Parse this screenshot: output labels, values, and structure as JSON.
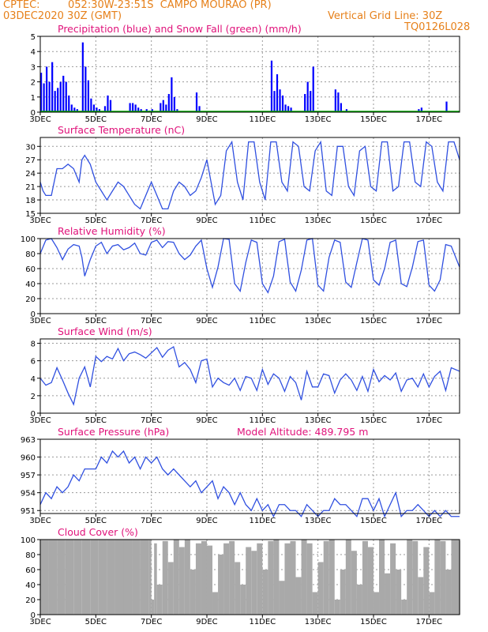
{
  "header": {
    "source": "CPTEC:",
    "location": "052:30W-23:51S  CAMPO MOURAO (PR)",
    "date": "03DEC2020 30Z (GMT)",
    "grid_note": "Vertical Grid Line: 30Z",
    "code": "TQ0126L028"
  },
  "colors": {
    "header": "#e6801a",
    "titles": "#e0127a",
    "precip": "#0000ff",
    "snow": "#00aa00",
    "line": "#3050e0",
    "cloud": "#a9a9a9"
  },
  "x_axis": {
    "ticks": [
      "3DEC",
      "5DEC",
      "7DEC",
      "9DEC",
      "11DEC",
      "13DEC",
      "15DEC",
      "17DEC"
    ],
    "tick_days": [
      3,
      5,
      7,
      9,
      11,
      13,
      15,
      17
    ],
    "range_days": [
      3,
      18.1
    ]
  },
  "chart_data": [
    {
      "id": "precip",
      "type": "bar",
      "title": "Precipitation (blue) and Snow Fall (green) (mm/h)",
      "ylim": [
        0,
        5
      ],
      "yticks": [
        0,
        1,
        2,
        3,
        4,
        5
      ],
      "series": [
        {
          "name": "Precipitation",
          "color": "#0000ff",
          "x": [
            3.0,
            3.1,
            3.2,
            3.3,
            3.4,
            3.5,
            3.6,
            3.7,
            3.8,
            3.9,
            4.0,
            4.1,
            4.2,
            4.3,
            4.5,
            4.6,
            4.7,
            4.8,
            4.9,
            5.0,
            5.1,
            5.3,
            5.4,
            5.5,
            6.2,
            6.3,
            6.4,
            6.5,
            6.6,
            6.8,
            6.9,
            7.0,
            7.3,
            7.4,
            7.5,
            7.6,
            7.7,
            7.8,
            7.9,
            8.6,
            8.7,
            11.3,
            11.4,
            11.5,
            11.6,
            11.7,
            11.8,
            11.9,
            12.0,
            12.5,
            12.6,
            12.7,
            12.8,
            13.6,
            13.7,
            13.8,
            14.0,
            16.6,
            16.7,
            17.6
          ],
          "values": [
            2.6,
            1.9,
            3.0,
            2.0,
            3.3,
            1.4,
            1.6,
            2.0,
            2.4,
            2.0,
            1.1,
            0.5,
            0.3,
            0.2,
            4.6,
            3.0,
            2.1,
            0.9,
            0.5,
            0.3,
            0.2,
            0.4,
            1.1,
            0.8,
            0.6,
            0.6,
            0.5,
            0.3,
            0.2,
            0.2,
            0.1,
            0.2,
            0.6,
            0.8,
            0.5,
            1.2,
            2.3,
            1.0,
            0.2,
            1.3,
            0.4,
            3.4,
            1.4,
            2.5,
            1.5,
            1.1,
            0.5,
            0.4,
            0.3,
            1.2,
            2.0,
            1.4,
            3.0,
            1.5,
            1.3,
            0.6,
            0.2,
            0.2,
            0.3,
            0.7
          ]
        },
        {
          "name": "Snow Fall",
          "color": "#00aa00",
          "x": [],
          "values": []
        }
      ]
    },
    {
      "id": "temperature",
      "type": "line",
      "title": "Surface Temperature (nC)",
      "ylim": [
        15,
        32
      ],
      "yticks": [
        15,
        18,
        21,
        24,
        27,
        30
      ],
      "x": [
        3.0,
        3.1,
        3.2,
        3.4,
        3.6,
        3.8,
        4.0,
        4.2,
        4.4,
        4.5,
        4.6,
        4.8,
        5.0,
        5.2,
        5.4,
        5.6,
        5.8,
        6.0,
        6.2,
        6.4,
        6.6,
        6.8,
        7.0,
        7.2,
        7.4,
        7.6,
        7.8,
        8.0,
        8.2,
        8.4,
        8.6,
        8.8,
        9.0,
        9.3,
        9.5,
        9.7,
        9.9,
        10.1,
        10.3,
        10.5,
        10.7,
        10.9,
        11.1,
        11.3,
        11.5,
        11.7,
        11.9,
        12.1,
        12.3,
        12.5,
        12.7,
        12.9,
        13.1,
        13.3,
        13.5,
        13.7,
        13.9,
        14.1,
        14.3,
        14.5,
        14.7,
        14.9,
        15.1,
        15.3,
        15.5,
        15.7,
        15.9,
        16.1,
        16.3,
        16.5,
        16.7,
        16.9,
        17.1,
        17.3,
        17.5,
        17.7,
        17.9,
        18.1
      ],
      "values": [
        22,
        20,
        19,
        19,
        25,
        25,
        26,
        25,
        22,
        27,
        28,
        26,
        22,
        20,
        18,
        20,
        22,
        21,
        19,
        17,
        16,
        19,
        22,
        19,
        16,
        16,
        20,
        22,
        21,
        19,
        20,
        23,
        27,
        17,
        19,
        29,
        31,
        22,
        18,
        31,
        31,
        22,
        18,
        31,
        31,
        22,
        20,
        31,
        30,
        21,
        20,
        29,
        31,
        20,
        19,
        30,
        30,
        21,
        19,
        29,
        30,
        21,
        20,
        31,
        31,
        20,
        21,
        31,
        31,
        22,
        21,
        31,
        30,
        22,
        20,
        31,
        31,
        27
      ]
    },
    {
      "id": "humidity",
      "type": "line",
      "title": "Relative Humidity (%)",
      "ylim": [
        0,
        100
      ],
      "yticks": [
        0,
        20,
        40,
        60,
        80,
        100
      ],
      "x": [
        3.0,
        3.2,
        3.4,
        3.6,
        3.8,
        4.0,
        4.2,
        4.4,
        4.5,
        4.6,
        4.8,
        5.0,
        5.2,
        5.4,
        5.6,
        5.8,
        6.0,
        6.2,
        6.4,
        6.6,
        6.8,
        7.0,
        7.2,
        7.4,
        7.6,
        7.8,
        8.0,
        8.2,
        8.4,
        8.6,
        8.8,
        9.0,
        9.2,
        9.4,
        9.6,
        9.8,
        10.0,
        10.2,
        10.4,
        10.6,
        10.8,
        11.0,
        11.2,
        11.4,
        11.6,
        11.8,
        12.0,
        12.2,
        12.4,
        12.6,
        12.8,
        13.0,
        13.2,
        13.4,
        13.6,
        13.8,
        14.0,
        14.2,
        14.4,
        14.6,
        14.8,
        15.0,
        15.2,
        15.4,
        15.6,
        15.8,
        16.0,
        16.2,
        16.4,
        16.6,
        16.8,
        17.0,
        17.2,
        17.4,
        17.6,
        17.8,
        18.1
      ],
      "values": [
        80,
        98,
        100,
        88,
        72,
        86,
        92,
        90,
        75,
        50,
        72,
        90,
        95,
        80,
        90,
        92,
        85,
        88,
        94,
        80,
        78,
        95,
        98,
        88,
        96,
        95,
        80,
        72,
        78,
        90,
        98,
        60,
        35,
        62,
        100,
        99,
        40,
        30,
        68,
        98,
        95,
        40,
        28,
        50,
        96,
        99,
        42,
        30,
        58,
        98,
        100,
        38,
        30,
        75,
        98,
        95,
        42,
        35,
        68,
        100,
        98,
        45,
        38,
        60,
        95,
        98,
        40,
        36,
        62,
        96,
        98,
        38,
        30,
        45,
        92,
        90,
        62
      ]
    },
    {
      "id": "wind",
      "type": "line",
      "title": "Surface Wind (m/s)",
      "ylim": [
        0,
        8.5
      ],
      "yticks": [
        0,
        2,
        4,
        6,
        8
      ],
      "x": [
        3.0,
        3.2,
        3.4,
        3.6,
        3.8,
        4.0,
        4.2,
        4.4,
        4.6,
        4.8,
        5.0,
        5.2,
        5.4,
        5.6,
        5.8,
        6.0,
        6.2,
        6.4,
        6.6,
        6.8,
        7.0,
        7.2,
        7.4,
        7.6,
        7.8,
        8.0,
        8.2,
        8.4,
        8.6,
        8.8,
        9.0,
        9.2,
        9.4,
        9.6,
        9.8,
        10.0,
        10.2,
        10.4,
        10.6,
        10.8,
        11.0,
        11.2,
        11.4,
        11.6,
        11.8,
        12.0,
        12.2,
        12.4,
        12.6,
        12.8,
        13.0,
        13.2,
        13.4,
        13.6,
        13.8,
        14.0,
        14.2,
        14.4,
        14.6,
        14.8,
        15.0,
        15.2,
        15.4,
        15.6,
        15.8,
        16.0,
        16.2,
        16.4,
        16.6,
        16.8,
        17.0,
        17.2,
        17.4,
        17.6,
        17.8,
        18.1
      ],
      "values": [
        4.0,
        3.2,
        3.5,
        5.2,
        3.8,
        2.3,
        1.0,
        4.0,
        5.3,
        3.0,
        6.5,
        5.9,
        6.5,
        6.2,
        7.4,
        6.0,
        6.8,
        7.0,
        6.7,
        6.3,
        6.9,
        7.5,
        6.4,
        7.2,
        7.6,
        5.3,
        5.8,
        5.0,
        3.5,
        6.0,
        6.2,
        3.0,
        4.0,
        3.5,
        3.2,
        4.0,
        2.6,
        4.2,
        4.0,
        2.6,
        5.0,
        3.3,
        4.5,
        4.0,
        2.5,
        4.2,
        3.5,
        1.5,
        4.8,
        3.0,
        3.0,
        4.5,
        4.3,
        2.3,
        3.8,
        4.5,
        3.8,
        2.6,
        4.2,
        2.5,
        5.0,
        3.6,
        4.3,
        3.8,
        4.6,
        2.5,
        3.8,
        4.0,
        3.0,
        4.5,
        3.0,
        4.2,
        4.8,
        2.6,
        5.2,
        4.8
      ]
    },
    {
      "id": "pressure",
      "type": "line",
      "title": "Surface Pressure (hPa)",
      "annotation": "Model Altitude: 489.795 m",
      "ylim": [
        950.5,
        963
      ],
      "yticks": [
        951,
        954,
        957,
        960,
        963
      ],
      "x": [
        3.0,
        3.2,
        3.4,
        3.6,
        3.8,
        4.0,
        4.2,
        4.4,
        4.6,
        4.8,
        5.0,
        5.2,
        5.4,
        5.6,
        5.8,
        6.0,
        6.2,
        6.4,
        6.6,
        6.8,
        7.0,
        7.2,
        7.4,
        7.6,
        7.8,
        8.0,
        8.2,
        8.4,
        8.6,
        8.8,
        9.0,
        9.2,
        9.4,
        9.6,
        9.8,
        10.0,
        10.2,
        10.4,
        10.6,
        10.8,
        11.0,
        11.2,
        11.4,
        11.6,
        11.8,
        12.0,
        12.2,
        12.4,
        12.6,
        12.8,
        13.0,
        13.2,
        13.4,
        13.6,
        13.8,
        14.0,
        14.2,
        14.4,
        14.6,
        14.8,
        15.0,
        15.2,
        15.4,
        15.6,
        15.8,
        16.0,
        16.2,
        16.4,
        16.6,
        16.8,
        17.0,
        17.2,
        17.4,
        17.6,
        17.8,
        18.1
      ],
      "values": [
        952,
        954,
        953,
        955,
        954,
        955,
        957,
        956,
        958,
        958,
        958,
        960,
        959,
        961,
        960,
        961,
        959,
        960,
        958,
        960,
        959,
        960,
        958,
        957,
        958,
        957,
        956,
        955,
        956,
        954,
        955,
        956,
        953,
        955,
        954,
        952,
        954,
        952,
        951,
        953,
        951,
        952,
        950,
        952,
        952,
        951,
        951,
        950,
        952,
        951,
        950,
        951,
        951,
        953,
        952,
        952,
        951,
        950,
        953,
        953,
        951,
        953,
        950,
        952,
        954,
        950,
        951,
        951,
        952,
        951,
        950,
        951,
        950,
        951,
        950,
        950
      ]
    },
    {
      "id": "cloud",
      "type": "area",
      "title": "Cloud Cover (%)",
      "ylim": [
        0,
        100
      ],
      "yticks": [
        0,
        20,
        40,
        60,
        80,
        100
      ],
      "x": [
        3.0,
        3.3,
        3.6,
        3.9,
        4.2,
        4.5,
        4.8,
        5.1,
        5.4,
        5.7,
        6.0,
        6.3,
        6.6,
        6.9,
        7.0,
        7.1,
        7.2,
        7.4,
        7.6,
        7.8,
        8.0,
        8.2,
        8.4,
        8.6,
        8.8,
        9.0,
        9.2,
        9.4,
        9.6,
        9.8,
        10.0,
        10.2,
        10.4,
        10.6,
        10.8,
        11.0,
        11.2,
        11.4,
        11.6,
        11.8,
        12.0,
        12.2,
        12.4,
        12.6,
        12.8,
        13.0,
        13.2,
        13.4,
        13.6,
        13.8,
        14.0,
        14.2,
        14.4,
        14.6,
        14.8,
        15.0,
        15.2,
        15.4,
        15.6,
        15.8,
        16.0,
        16.2,
        16.4,
        16.6,
        16.8,
        17.0,
        17.2,
        17.4,
        17.6,
        17.8,
        18.1
      ],
      "values": [
        100,
        100,
        100,
        100,
        100,
        100,
        100,
        100,
        100,
        100,
        100,
        100,
        100,
        100,
        20,
        95,
        40,
        98,
        70,
        100,
        90,
        100,
        60,
        95,
        98,
        92,
        30,
        80,
        95,
        98,
        70,
        40,
        90,
        85,
        95,
        60,
        98,
        100,
        45,
        95,
        98,
        50,
        100,
        95,
        30,
        70,
        98,
        100,
        20,
        60,
        100,
        85,
        40,
        98,
        90,
        30,
        100,
        55,
        95,
        60,
        20,
        100,
        98,
        50,
        90,
        30,
        100,
        98,
        60,
        100,
        98
      ]
    }
  ]
}
